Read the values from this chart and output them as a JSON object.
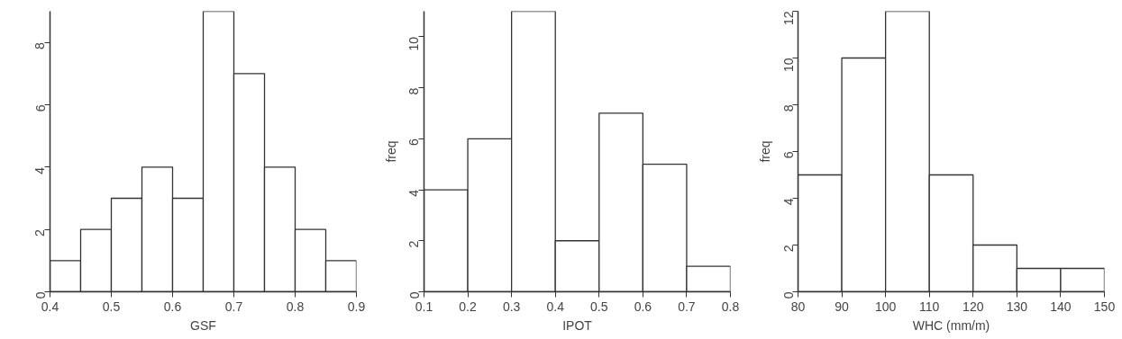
{
  "chart_data": [
    {
      "type": "histogram",
      "xlabel": "GSF",
      "bins": [
        0.4,
        0.45,
        0.5,
        0.55,
        0.6,
        0.65,
        0.7,
        0.75,
        0.8,
        0.85,
        0.9
      ],
      "values": [
        1,
        2,
        3,
        4,
        3,
        9,
        7,
        4,
        2,
        1
      ],
      "color": "#ffffff",
      "xlim": [
        0.4,
        0.9
      ],
      "xticks": [
        0.4,
        0.5,
        0.6,
        0.7,
        0.8,
        0.9
      ],
      "ylim": [
        0,
        9
      ],
      "yticks": [
        0,
        2,
        4,
        6,
        8
      ],
      "grid": false
    },
    {
      "type": "histogram",
      "xlabel": "IPOT",
      "ylabel": "freq",
      "bins": [
        0.1,
        0.2,
        0.3,
        0.4,
        0.5,
        0.6,
        0.7,
        0.8
      ],
      "values": [
        4,
        6,
        11,
        2,
        7,
        5,
        1
      ],
      "color": "#ffffff",
      "xlim": [
        0.1,
        0.8
      ],
      "xticks": [
        0.1,
        0.2,
        0.3,
        0.4,
        0.5,
        0.6,
        0.7,
        0.8
      ],
      "ylim": [
        0,
        11
      ],
      "yticks": [
        0,
        2,
        4,
        6,
        8,
        10
      ],
      "grid": false
    },
    {
      "type": "histogram",
      "xlabel": "WHC (mm/m)",
      "ylabel": "freq",
      "bins": [
        80,
        90,
        100,
        110,
        120,
        130,
        140,
        150
      ],
      "values": [
        5,
        10,
        12,
        5,
        2,
        1,
        1
      ],
      "color": "#ffffff",
      "xlim": [
        80,
        150
      ],
      "xticks": [
        80,
        90,
        100,
        110,
        120,
        130,
        140,
        150
      ],
      "ylim": [
        0,
        12
      ],
      "yticks": [
        0,
        2,
        4,
        6,
        8,
        10,
        12
      ],
      "grid": false
    }
  ]
}
